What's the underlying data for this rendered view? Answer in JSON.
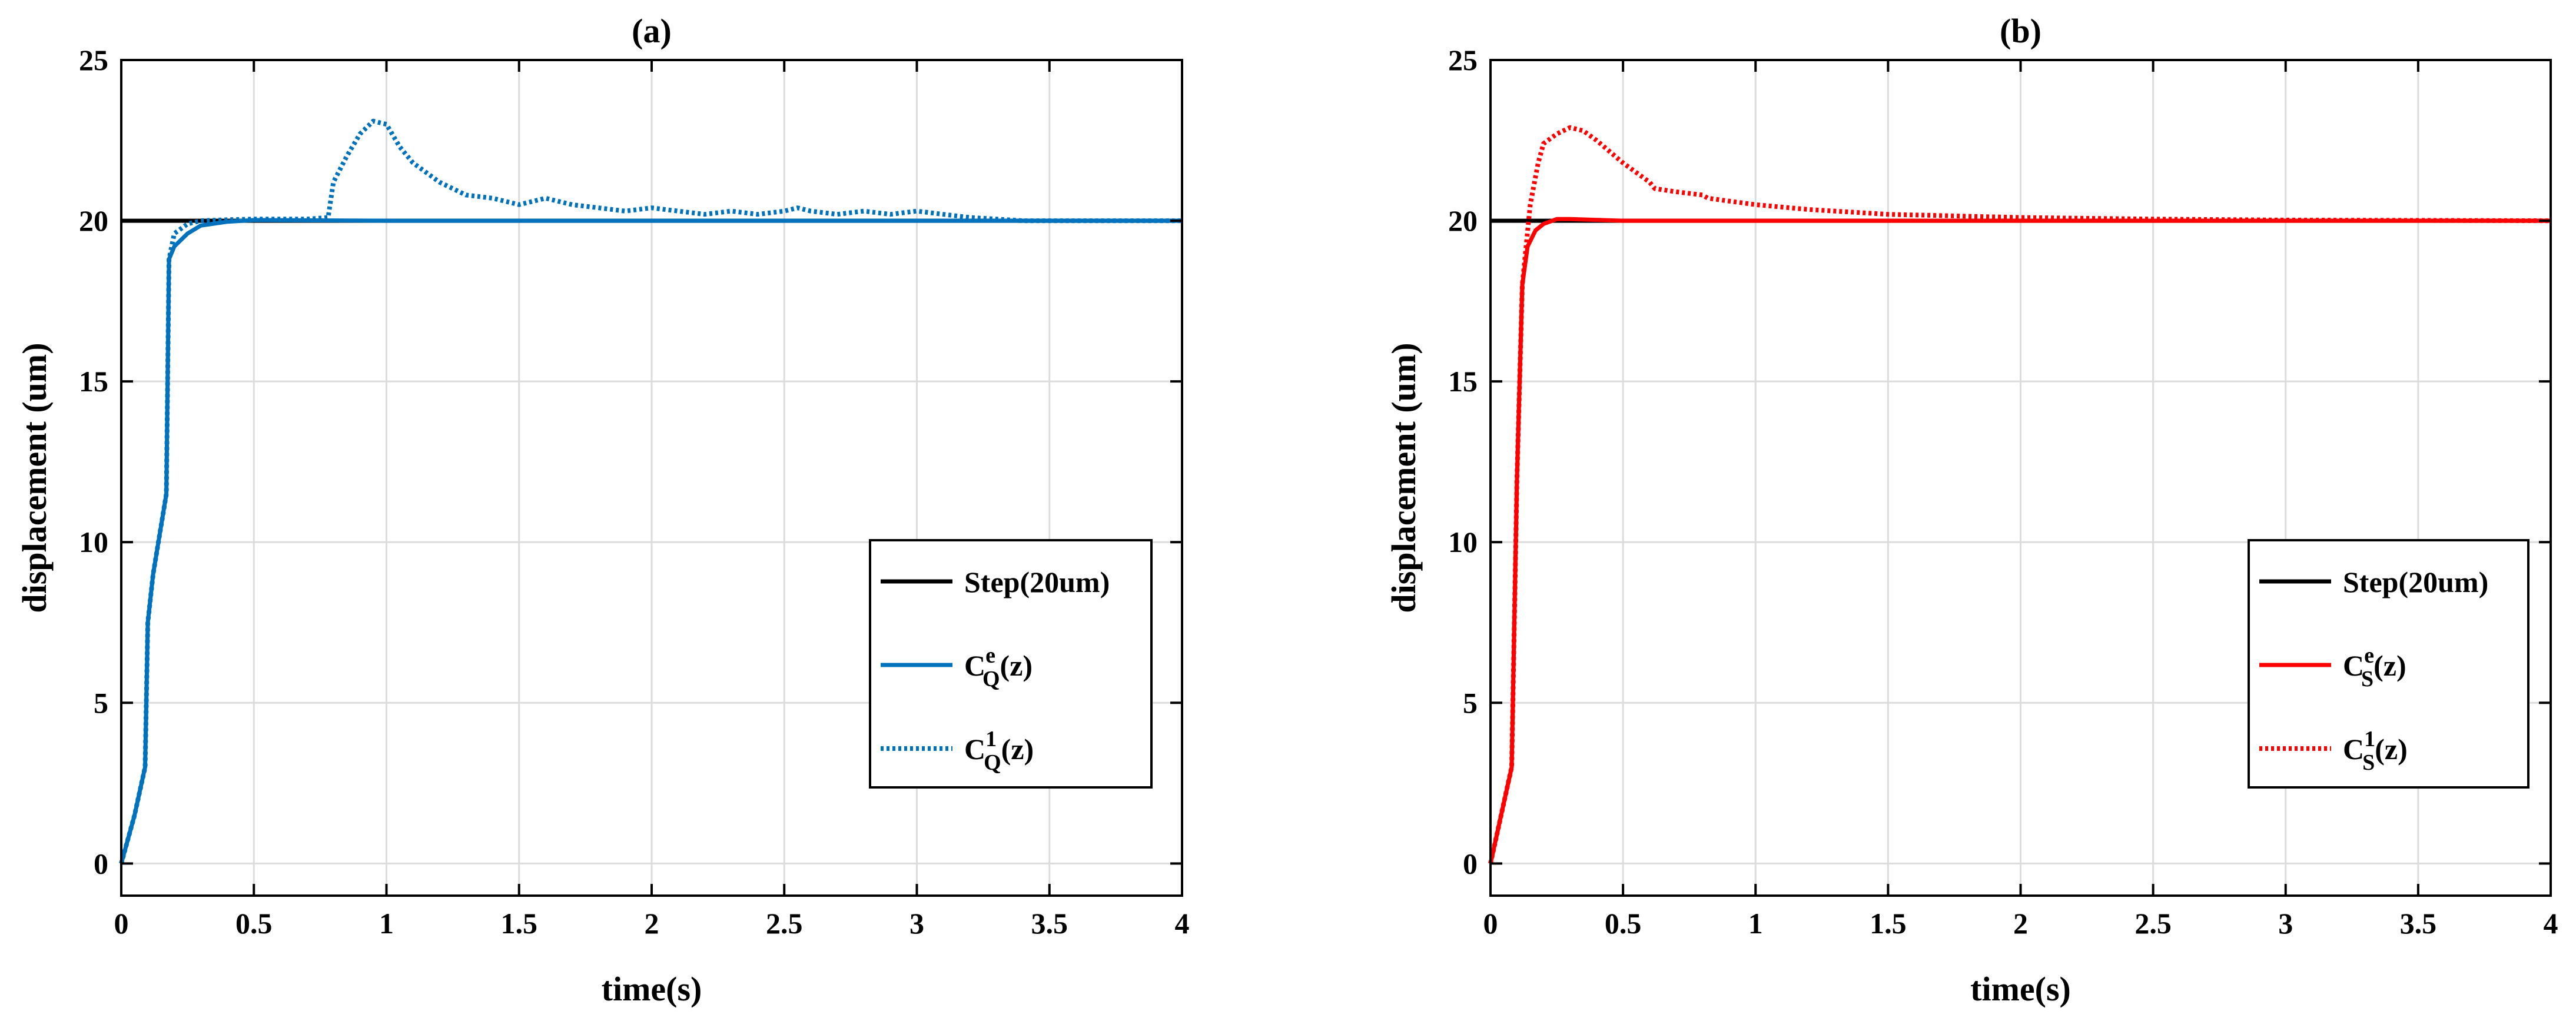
{
  "chart_data": [
    {
      "type": "line",
      "title": "(a)",
      "xlabel": "time(s)",
      "ylabel": "displacement (um)",
      "xlim": [
        0,
        4
      ],
      "ylim": [
        -1,
        25
      ],
      "xticks": [
        0,
        0.5,
        1,
        1.5,
        2,
        2.5,
        3,
        3.5,
        4
      ],
      "xtick_labels": [
        "0",
        "0.5",
        "1",
        "1.5",
        "2",
        "2.5",
        "3",
        "3.5",
        "4"
      ],
      "yticks": [
        0,
        5,
        10,
        15,
        20,
        25
      ],
      "ytick_labels": [
        "0",
        "5",
        "10",
        "15",
        "20",
        "25"
      ],
      "grid": true,
      "legend_position": "right-middle",
      "series": [
        {
          "name": "Step(20um)",
          "legend_main": "Step(20um)",
          "color": "#000000",
          "style": "solid",
          "x": [
            0,
            4
          ],
          "y": [
            20,
            20
          ]
        },
        {
          "name": "C_Q^e(z)",
          "legend_main": "C",
          "legend_sup": "e",
          "legend_sub": "Q",
          "legend_tail": "(z)",
          "color": "#0072BD",
          "style": "solid",
          "x": [
            0,
            0.05,
            0.09,
            0.1,
            0.12,
            0.15,
            0.17,
            0.18,
            0.2,
            0.25,
            0.3,
            0.4,
            0.5,
            1,
            2,
            4
          ],
          "y": [
            0,
            1.5,
            3,
            7.5,
            9,
            10.5,
            11.5,
            18.8,
            19.2,
            19.6,
            19.85,
            19.97,
            20.02,
            20,
            20,
            20
          ]
        },
        {
          "name": "C_Q^1(z)",
          "legend_main": "C",
          "legend_sup": "1",
          "legend_sub": "Q",
          "legend_tail": "(z)",
          "color": "#0072BD",
          "style": "dotted",
          "x": [
            0,
            0.05,
            0.09,
            0.1,
            0.12,
            0.15,
            0.17,
            0.18,
            0.2,
            0.25,
            0.3,
            0.4,
            0.5,
            0.6,
            0.7,
            0.78,
            0.8,
            0.85,
            0.9,
            0.95,
            1.0,
            1.05,
            1.1,
            1.2,
            1.3,
            1.4,
            1.5,
            1.6,
            1.65,
            1.7,
            1.8,
            1.9,
            2.0,
            2.1,
            2.2,
            2.3,
            2.4,
            2.5,
            2.55,
            2.6,
            2.7,
            2.8,
            2.9,
            3.0,
            3.1,
            3.2,
            3.3,
            3.4,
            4.0
          ],
          "y": [
            0,
            1.5,
            3,
            7.5,
            9,
            10.5,
            11.5,
            18.8,
            19.6,
            19.9,
            20,
            20.03,
            20.05,
            20.05,
            20.05,
            20.1,
            21.2,
            22.0,
            22.7,
            23.1,
            23.0,
            22.3,
            21.8,
            21.2,
            20.8,
            20.7,
            20.5,
            20.7,
            20.6,
            20.5,
            20.4,
            20.3,
            20.4,
            20.3,
            20.2,
            20.3,
            20.2,
            20.3,
            20.4,
            20.3,
            20.2,
            20.3,
            20.2,
            20.3,
            20.2,
            20.1,
            20.05,
            20,
            20
          ]
        }
      ]
    },
    {
      "type": "line",
      "title": "(b)",
      "xlabel": "time(s)",
      "ylabel": "displacement (um)",
      "xlim": [
        0,
        4
      ],
      "ylim": [
        -1,
        25
      ],
      "xticks": [
        0,
        0.5,
        1,
        1.5,
        2,
        2.5,
        3,
        3.5,
        4
      ],
      "xtick_labels": [
        "0",
        "0.5",
        "1",
        "1.5",
        "2",
        "2.5",
        "3",
        "3.5",
        "4"
      ],
      "yticks": [
        0,
        5,
        10,
        15,
        20,
        25
      ],
      "ytick_labels": [
        "0",
        "5",
        "10",
        "15",
        "20",
        "25"
      ],
      "grid": true,
      "legend_position": "right-middle",
      "series": [
        {
          "name": "Step(20um)",
          "legend_main": "Step(20um)",
          "color": "#000000",
          "style": "solid",
          "x": [
            0,
            4
          ],
          "y": [
            20,
            20
          ]
        },
        {
          "name": "C_S^e(z)",
          "legend_main": "C",
          "legend_sup": "e",
          "legend_sub": "S",
          "legend_tail": "(z)",
          "color": "#FF0000",
          "style": "solid",
          "x": [
            0,
            0.04,
            0.08,
            0.1,
            0.12,
            0.14,
            0.17,
            0.2,
            0.25,
            0.3,
            0.5,
            1,
            4
          ],
          "y": [
            0,
            1.5,
            3,
            12,
            18,
            19.2,
            19.7,
            19.9,
            20.05,
            20.05,
            20,
            20,
            20
          ]
        },
        {
          "name": "C_S^1(z)",
          "legend_main": "C",
          "legend_sup": "1",
          "legend_sub": "S",
          "legend_tail": "(z)",
          "color": "#FF0000",
          "style": "dotted",
          "x": [
            0,
            0.04,
            0.08,
            0.1,
            0.12,
            0.15,
            0.18,
            0.2,
            0.25,
            0.3,
            0.35,
            0.4,
            0.5,
            0.6,
            0.62,
            0.7,
            0.8,
            0.82,
            1.0,
            1.2,
            1.5,
            2.0,
            2.5,
            3.0,
            3.5,
            4.0
          ],
          "y": [
            0,
            1.5,
            3,
            12,
            18,
            20.5,
            21.8,
            22.4,
            22.7,
            22.9,
            22.8,
            22.5,
            21.8,
            21.2,
            21.0,
            20.9,
            20.8,
            20.7,
            20.5,
            20.35,
            20.2,
            20.1,
            20.05,
            20.02,
            20.01,
            20
          ]
        }
      ]
    }
  ]
}
